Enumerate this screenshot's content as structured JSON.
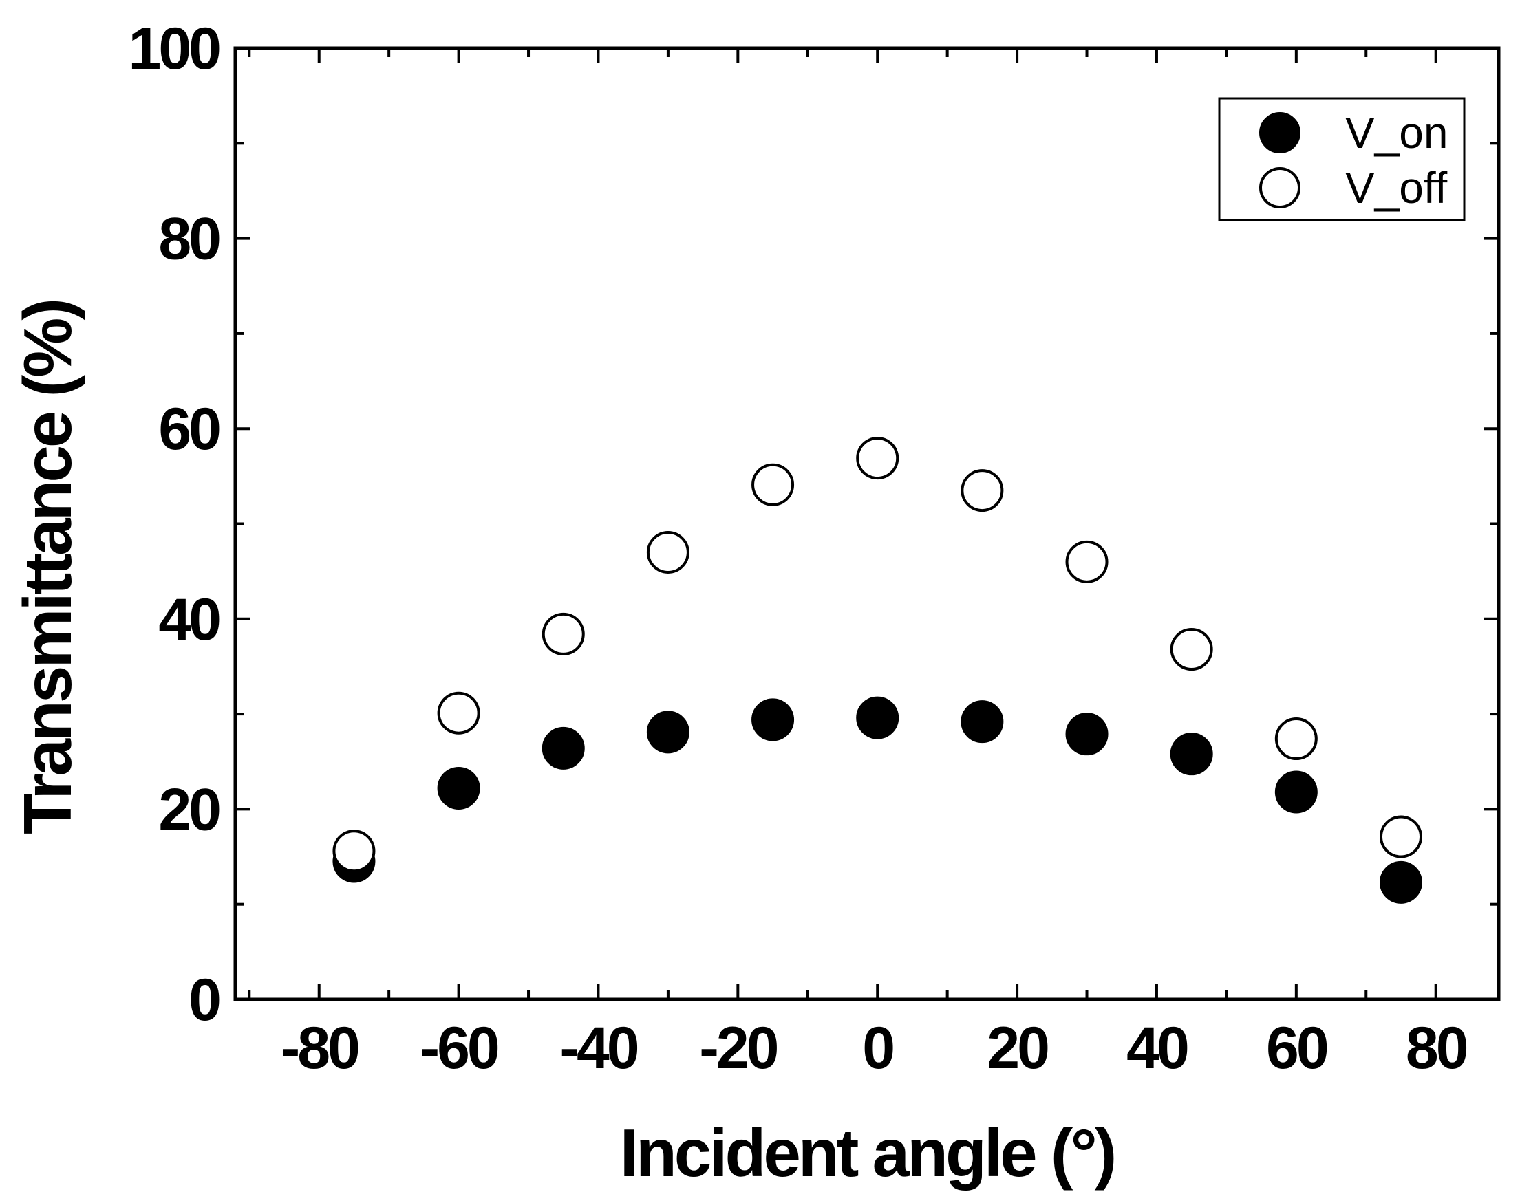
{
  "chart_data": {
    "type": "scatter",
    "title": "",
    "xlabel": "Incident angle (°)",
    "ylabel": "Transmittance (%)",
    "xlim": [
      -92,
      89
    ],
    "ylim": [
      0,
      100
    ],
    "x_ticks": [
      -80,
      -60,
      -40,
      -20,
      0,
      20,
      40,
      60,
      80
    ],
    "y_ticks": [
      0,
      20,
      40,
      60,
      80,
      100
    ],
    "x_tick_labels": [
      "-80",
      "-60",
      "-40",
      "-20",
      "0",
      "20",
      "40",
      "60",
      "80"
    ],
    "y_tick_labels": [
      "0",
      "20",
      "40",
      "60",
      "80",
      "100"
    ],
    "x": [
      -75,
      -60,
      -45,
      -30,
      -15,
      0,
      15,
      30,
      45,
      60,
      75
    ],
    "series": [
      {
        "name": "V_on",
        "marker": "filled-circle",
        "color": "#000000",
        "values": [
          14.5,
          22.2,
          26.4,
          28.1,
          29.4,
          29.6,
          29.2,
          27.9,
          25.8,
          21.8,
          12.3
        ]
      },
      {
        "name": "V_off",
        "marker": "open-circle",
        "color": "#000000",
        "values": [
          15.6,
          30.1,
          38.4,
          47.0,
          54.1,
          56.9,
          53.5,
          46.0,
          36.8,
          27.4,
          17.1
        ]
      }
    ],
    "legend_position": "top-right",
    "grid": false
  }
}
